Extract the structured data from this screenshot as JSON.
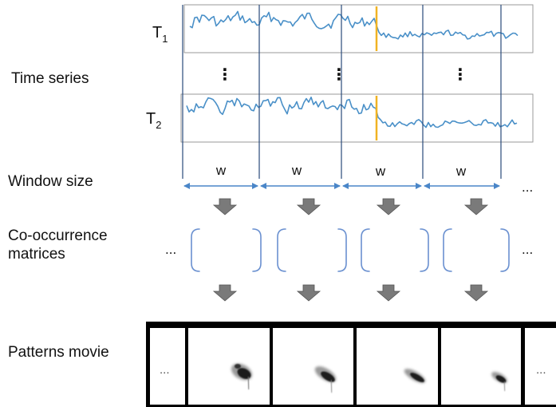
{
  "labels": {
    "time_series": "Time series",
    "window_size": "Window size",
    "co_occurrence_line1": "Co-occurrence",
    "co_occurrence_line2": "matrices",
    "patterns_movie": "Patterns movie"
  },
  "series": [
    {
      "name": "T",
      "subscript": "1"
    },
    {
      "name": "T",
      "subscript": "2"
    }
  ],
  "window_label": "w",
  "ellipsis": "...",
  "vertical_ellipsis": "⋮",
  "colors": {
    "series_line": "#4a90c8",
    "highlight": "#f0b323",
    "window_arrow": "#4a86c8",
    "bracket": "#6a90d0",
    "down_arrow": "#7a7a7a",
    "film_border": "#000000",
    "text": "#111111"
  },
  "icons": [
    "down-arrow-icon",
    "double-arrow-icon",
    "film-frame",
    "ellipsis-icon"
  ]
}
